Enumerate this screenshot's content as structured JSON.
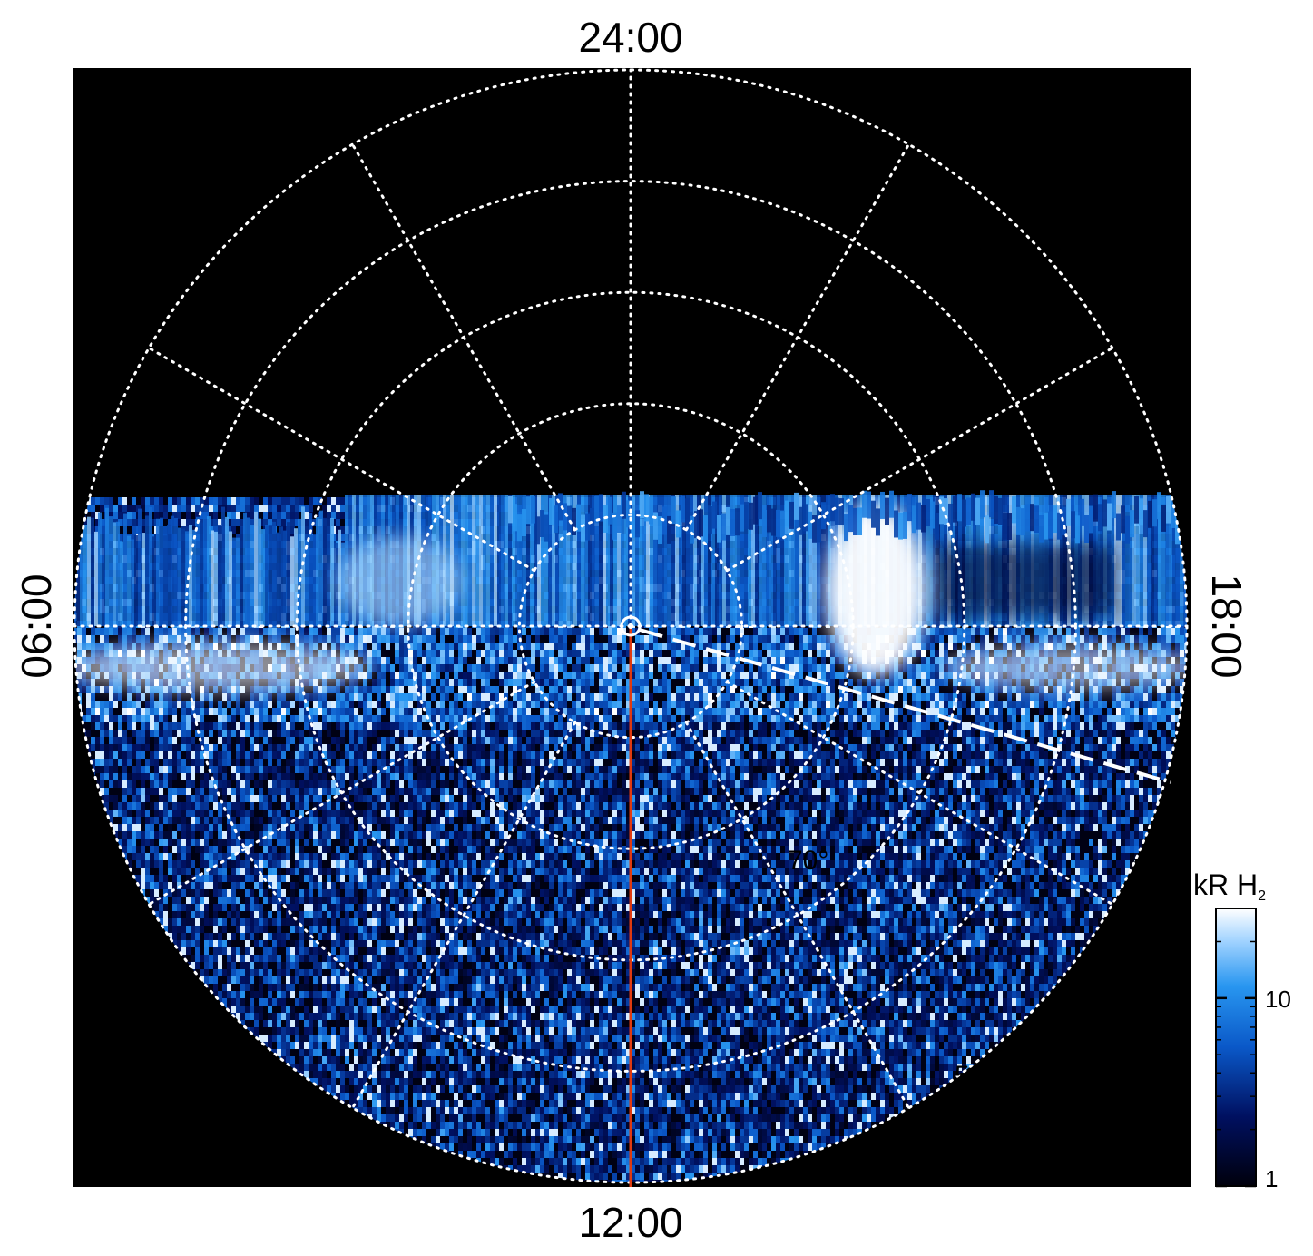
{
  "chart_data": {
    "type": "heatmap",
    "projection": "polar (north-pole-centred, local time vs latitude)",
    "local_time_labels": {
      "top": "24:00",
      "left": "06:00",
      "right": "18:00",
      "bottom": "12:00"
    },
    "latitude_circles_deg": [
      80,
      70,
      60,
      50
    ],
    "latitude_labels": [
      "70°",
      "50°"
    ],
    "meridian_spacing_hours": 2,
    "colorbar": {
      "label": "kR H",
      "label_subscript": "2",
      "scale": "log",
      "range": [
        1,
        30
      ],
      "tick_labels": [
        "10",
        "1"
      ],
      "tick_values": [
        10,
        1
      ]
    },
    "colors": {
      "background": "#000000",
      "grid": "#ffffff",
      "cmap_low": "#000010",
      "cmap_mid": "#1a7fe0",
      "cmap_high": "#ffffff",
      "marker_line": "#e03a10"
    },
    "features": {
      "auroral_oval_band": "bright band spanning 06:00 to 18:00 near equator of projection",
      "bright_spot_local_time": "~16:30",
      "red_meridian_line": "12:00",
      "dashed_white_line": "pole toward ~16:00 (dayside)"
    },
    "grid": true
  }
}
